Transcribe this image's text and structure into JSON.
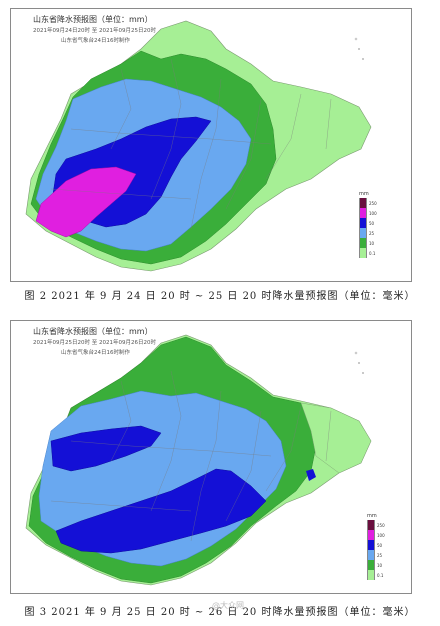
{
  "panels": [
    {
      "title": "山东省降水预报图（单位：mm）",
      "time_range": "2021年09月24日20时  至  2021年09月25日20时",
      "issuer": "山东省气象台24日16时制作",
      "legend_unit": "mm",
      "legend": [
        {
          "label": "250",
          "color": "#6a0f3f"
        },
        {
          "label": "100",
          "color": "#e01fe0"
        },
        {
          "label": "50",
          "color": "#1410d6"
        },
        {
          "label": "25",
          "color": "#69a8f0"
        },
        {
          "label": "10",
          "color": "#3aae3a"
        },
        {
          "label": "0.1",
          "color": "#a6ef95"
        }
      ],
      "caption": "图 2   2021 年 9 月 24 日 20 时 ~ 25 日 20 时降水量预报图（单位：毫米）"
    },
    {
      "title": "山东省降水预报图（单位：mm）",
      "time_range": "2021年09月25日20时  至  2021年09月26日20时",
      "issuer": "山东省气象台24日16时制作",
      "legend_unit": "mm",
      "legend": [
        {
          "label": "250",
          "color": "#6a0f3f"
        },
        {
          "label": "100",
          "color": "#e01fe0"
        },
        {
          "label": "50",
          "color": "#1410d6"
        },
        {
          "label": "25",
          "color": "#69a8f0"
        },
        {
          "label": "10",
          "color": "#3aae3a"
        },
        {
          "label": "0.1",
          "color": "#a6ef95"
        }
      ],
      "caption": "图 3   2021 年 9 月 25 日 20 时 ~ 26 日 20 时降水量预报图（单位：毫米）"
    }
  ],
  "watermark": "@大众网"
}
